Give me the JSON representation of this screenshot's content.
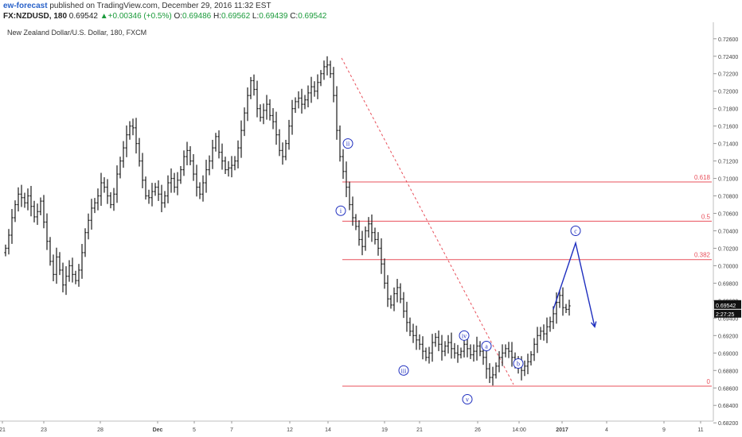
{
  "header": {
    "author": "ew-forecast",
    "published": "published on TradingView.com, December 29, 2016 11:32 EST",
    "symbol": "FX:NZDUSD, 180",
    "last": "0.69542",
    "change": "+0.00346 (+0.5%)",
    "open_label": "O:",
    "open": "0.69486",
    "high_label": "H:",
    "high": "0.69562",
    "low_label": "L:",
    "low": "0.69439",
    "close_label": "C:",
    "close": "0.69542"
  },
  "colors": {
    "bars": "#1a1a1a",
    "fib": "#e8505b",
    "trend": "#e8505b",
    "wave": "#1f2fbf",
    "accent_green": "#1a9a3a"
  },
  "chart_data": {
    "type": "ohlc",
    "title": "New Zealand Dollar/U.S. Dollar, 180, FXCM",
    "ylim": [
      0.6822,
      0.7268
    ],
    "y_ticks": [
      "0.72600",
      "0.72400",
      "0.72200",
      "0.72000",
      "0.71800",
      "0.71600",
      "0.71400",
      "0.71200",
      "0.71000",
      "0.70800",
      "0.70600",
      "0.70400",
      "0.70200",
      "0.70000",
      "0.69800",
      "0.69600",
      "0.69400",
      "0.69200",
      "0.69000",
      "0.68800",
      "0.68600",
      "0.68400",
      "0.68200"
    ],
    "x_ticks": [
      "21",
      "23",
      "28",
      "Dec",
      "5",
      "7",
      "12",
      "14",
      "19",
      "21",
      "26",
      "14:00",
      "2017",
      "4",
      "9",
      "11"
    ],
    "price_label": "0.69542",
    "time_label": "2:27:25",
    "series": [
      {
        "values": [
          0.702,
          0.7035,
          0.7055,
          0.707,
          0.7082,
          0.7078,
          0.7072,
          0.708,
          0.7068,
          0.7056,
          0.7062,
          0.7074,
          0.705,
          0.7028,
          0.7005,
          0.699,
          0.701,
          0.6995,
          0.6978,
          0.6988,
          0.7,
          0.699,
          0.6983,
          0.6995,
          0.7015,
          0.7038,
          0.7052,
          0.7066,
          0.7072,
          0.708,
          0.7095,
          0.709,
          0.708,
          0.707,
          0.7082,
          0.7105,
          0.712,
          0.7135,
          0.715,
          0.716,
          0.7158,
          0.714,
          0.712,
          0.7098,
          0.708,
          0.7078,
          0.7085,
          0.709,
          0.7082,
          0.7072,
          0.708,
          0.7095,
          0.71,
          0.709,
          0.7098,
          0.711,
          0.7125,
          0.7132,
          0.712,
          0.7105,
          0.709,
          0.7082,
          0.7095,
          0.711,
          0.712,
          0.7135,
          0.7148,
          0.713,
          0.712,
          0.711,
          0.7112,
          0.7115,
          0.712,
          0.7135,
          0.7155,
          0.7175,
          0.7195,
          0.7212,
          0.7202,
          0.718,
          0.717,
          0.7178,
          0.7185,
          0.7172,
          0.7165,
          0.715,
          0.7132,
          0.7125,
          0.714,
          0.716,
          0.718,
          0.7188,
          0.7192,
          0.7185,
          0.719,
          0.7198,
          0.7205,
          0.72,
          0.721,
          0.722,
          0.7228,
          0.723,
          0.722,
          0.7195,
          0.7155,
          0.7125,
          0.7108,
          0.709,
          0.707,
          0.7055,
          0.7045,
          0.703,
          0.7022,
          0.704,
          0.7048,
          0.7038,
          0.703,
          0.702,
          0.7002,
          0.698,
          0.6962,
          0.6955,
          0.6968,
          0.6975,
          0.6962,
          0.6948,
          0.6935,
          0.6925,
          0.692,
          0.6915,
          0.691,
          0.6902,
          0.6895,
          0.69,
          0.6912,
          0.6918,
          0.691,
          0.6902,
          0.6908,
          0.6912,
          0.6905,
          0.69,
          0.6898,
          0.6902,
          0.691,
          0.6905,
          0.6898,
          0.6902,
          0.6908,
          0.6902,
          0.6895,
          0.6882,
          0.6872,
          0.6875,
          0.6885,
          0.6895,
          0.69,
          0.6905,
          0.6902,
          0.6895,
          0.6888,
          0.6885,
          0.688,
          0.6885,
          0.689,
          0.6898,
          0.691,
          0.692,
          0.6925,
          0.6922,
          0.693,
          0.6936,
          0.6945,
          0.6958,
          0.6966,
          0.6952,
          0.695,
          0.6954
        ]
      }
    ],
    "fib_levels": [
      {
        "label": "0.618",
        "value": 0.7096
      },
      {
        "label": "0.5",
        "value": 0.7051
      },
      {
        "label": "0.382",
        "value": 0.7007
      },
      {
        "label": "0",
        "value": 0.6862
      }
    ],
    "trendline": [
      {
        "bar": 105,
        "value": 0.7238
      },
      {
        "bar": 159,
        "value": 0.6864
      }
    ],
    "projection": [
      {
        "bar": 172,
        "value": 0.695
      },
      {
        "bar": 179,
        "value": 0.7026
      },
      {
        "bar": 185,
        "value": 0.693
      }
    ],
    "wave_labels": [
      {
        "text": "i",
        "bar": 106,
        "value": 0.7063
      },
      {
        "text": "ii",
        "bar": 107,
        "value": 0.714
      },
      {
        "text": "iii",
        "bar": 125,
        "value": 0.688
      },
      {
        "text": "iv",
        "bar": 144,
        "value": 0.692
      },
      {
        "text": "v",
        "bar": 145,
        "value": 0.6847
      },
      {
        "text": "a",
        "bar": 151,
        "value": 0.6908
      },
      {
        "text": "b",
        "bar": 161,
        "value": 0.6888
      },
      {
        "text": "c",
        "bar": 179,
        "value": 0.704
      }
    ]
  }
}
